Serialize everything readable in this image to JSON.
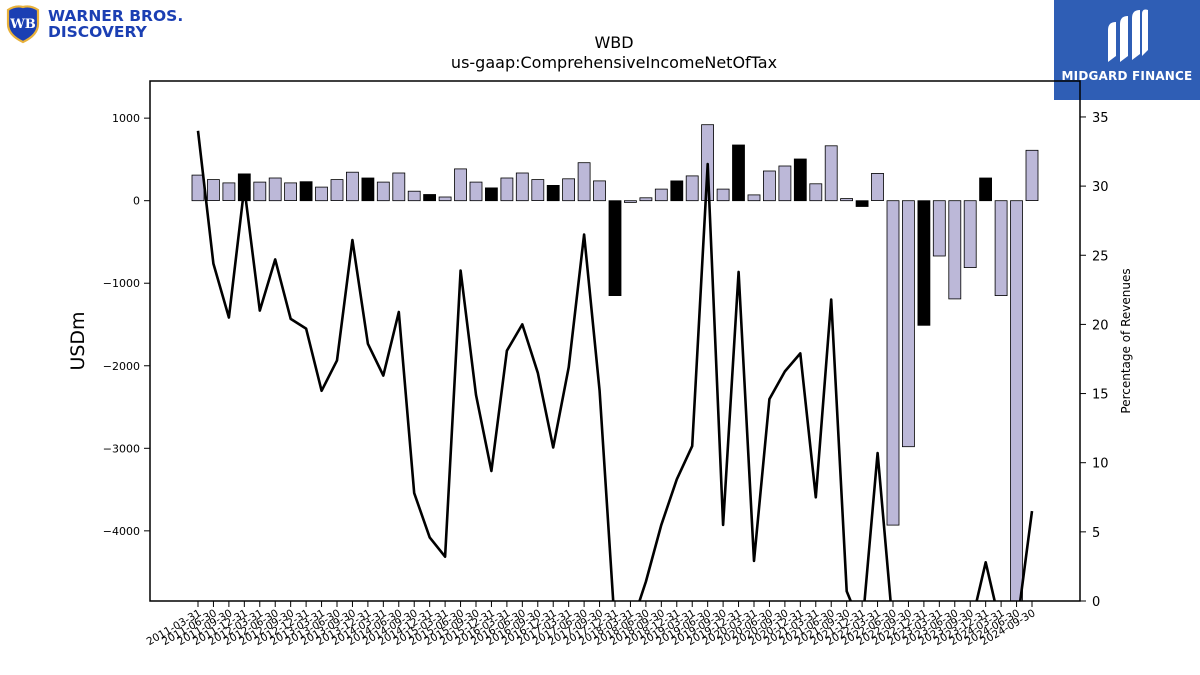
{
  "brand": {
    "left_logo_line1": "WARNER BROS.",
    "left_logo_line2": "DISCOVERY",
    "left_logo_monogram": "WB",
    "right_logo_text": "MIDGARD FINANCE",
    "right_logo_color": "#2f5eb5",
    "left_logo_color": "#1b3fb3"
  },
  "chart_data": {
    "type": "bar",
    "title": "WBD",
    "subtitle": "us-gaap:ComprehensiveIncomeNetOfTax",
    "ylabel": "USDm",
    "y2label": "Percentage of Revenues",
    "ylim": [
      -4850,
      1450
    ],
    "y2lim": [
      0,
      37.6
    ],
    "yticks": [
      1000,
      0,
      -1000,
      -2000,
      -3000,
      -4000
    ],
    "ytick_labels": [
      "1000",
      "0",
      "−1000",
      "−2000",
      "−3000",
      "−4000"
    ],
    "y2ticks": [
      0,
      5,
      10,
      15,
      20,
      25,
      30,
      35
    ],
    "y2tick_labels": [
      "0",
      "5",
      "10",
      "15",
      "20",
      "25",
      "30",
      "35"
    ],
    "bar_colors": {
      "default": "#bcb8d8",
      "highlight": "#000000"
    },
    "categories": [
      "2011-03-31",
      "2011-06-30",
      "2011-09-30",
      "2011-12-31",
      "2012-03-31",
      "2012-06-30",
      "2012-09-30",
      "2012-12-31",
      "2013-03-31",
      "2013-06-30",
      "2013-09-30",
      "2013-12-31",
      "2014-03-31",
      "2014-06-30",
      "2014-09-30",
      "2014-12-31",
      "2015-03-31",
      "2015-06-30",
      "2015-09-30",
      "2015-12-31",
      "2016-03-31",
      "2016-06-30",
      "2016-09-30",
      "2016-12-31",
      "2017-03-31",
      "2017-06-30",
      "2017-09-30",
      "2017-12-31",
      "2018-03-31",
      "2018-06-30",
      "2018-09-30",
      "2018-12-31",
      "2019-03-31",
      "2019-06-30",
      "2019-09-30",
      "2019-12-31",
      "2020-03-31",
      "2020-06-30",
      "2020-09-30",
      "2020-12-31",
      "2021-03-31",
      "2021-06-30",
      "2021-09-30",
      "2021-12-31",
      "2022-03-31",
      "2022-06-30",
      "2022-09-30",
      "2022-12-31",
      "2023-03-31",
      "2023-06-30",
      "2023-09-30",
      "2023-12-31",
      "2024-03-31",
      "2024-06-30",
      "2024-09-30"
    ],
    "series": [
      {
        "values": [
          310,
          255,
          215,
          325,
          225,
          275,
          215,
          230,
          165,
          255,
          345,
          275,
          225,
          335,
          115,
          75,
          45,
          385,
          225,
          155,
          275,
          335,
          255,
          185,
          265,
          460,
          240,
          -1150,
          -20,
          35,
          140,
          240,
          300,
          920,
          140,
          675,
          70,
          360,
          420,
          505,
          205,
          665,
          25,
          -70,
          330,
          -3930,
          -2980,
          -1510,
          -670,
          -1190,
          -810,
          275,
          -1150,
          -4850,
          610
        ],
        "highlight": [
          false,
          false,
          false,
          true,
          false,
          false,
          false,
          true,
          false,
          false,
          false,
          true,
          false,
          false,
          false,
          true,
          false,
          false,
          false,
          true,
          false,
          false,
          false,
          true,
          false,
          false,
          false,
          true,
          false,
          false,
          false,
          true,
          false,
          false,
          false,
          true,
          false,
          false,
          false,
          true,
          false,
          false,
          false,
          true,
          false,
          false,
          false,
          true,
          false,
          false,
          false,
          true,
          false,
          false,
          false
        ]
      },
      {
        "axis": "right",
        "values": [
          34.0,
          24.4,
          20.5,
          29.9,
          21.0,
          24.7,
          20.4,
          19.7,
          15.2,
          17.4,
          26.1,
          18.6,
          16.3,
          20.9,
          7.8,
          4.6,
          3.2,
          23.9,
          14.9,
          9.4,
          18.1,
          20.0,
          16.5,
          11.1,
          16.9,
          26.5,
          15.2,
          -2.0,
          -2.0,
          1.4,
          5.5,
          8.8,
          11.2,
          31.6,
          5.5,
          23.8,
          2.9,
          14.6,
          16.6,
          17.9,
          7.5,
          21.8,
          0.7,
          -2.0,
          10.7,
          -2.0,
          -2.0,
          -2.0,
          -2.0,
          -2.0,
          -2.0,
          2.8,
          -2.0,
          -2.0,
          6.5
        ]
      }
    ]
  }
}
